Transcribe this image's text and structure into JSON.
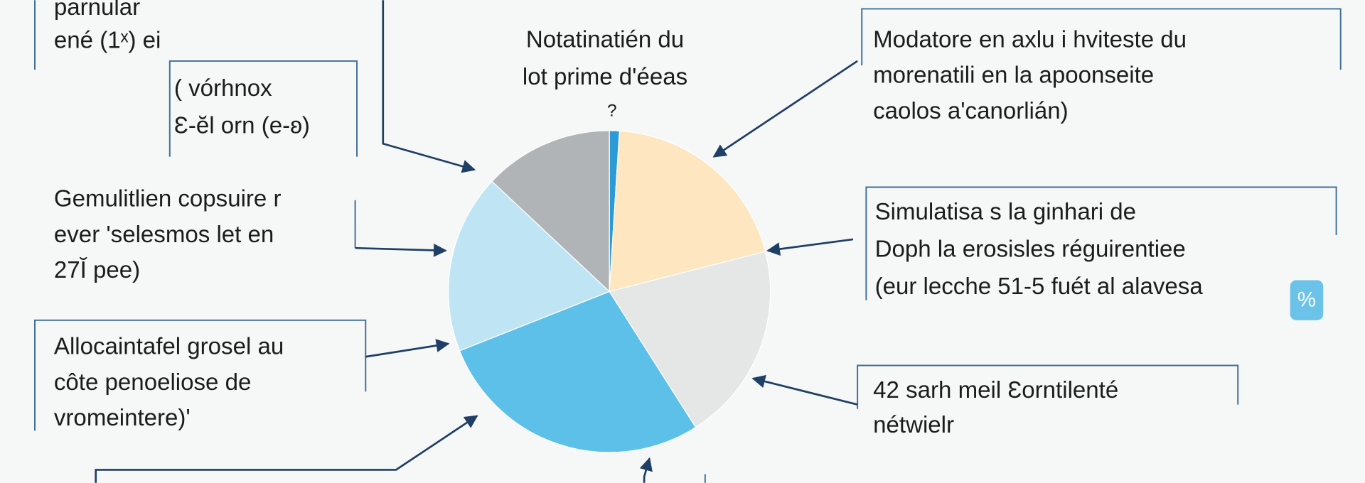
{
  "chart_data": {
    "type": "pie",
    "title": [
      "Notatinatién du",
      "lot prime d'éeas"
    ],
    "slice_label": "?",
    "values": [
      1,
      20,
      20,
      28,
      18,
      13
    ],
    "colors": [
      "#2b9ad6",
      "#fde6c0",
      "#e5e6e6",
      "#5cc0e8",
      "#bfe5f5",
      "#b1b4b6"
    ],
    "annotations": [
      {
        "lines": [
          "parnular",
          "ené (1ˣ) ei"
        ]
      },
      {
        "lines": [
          "( vórhnox",
          "Ɛ-ĕl orn (e-ʚ)"
        ]
      },
      {
        "lines": [
          "Modatore en axlu i hviteste du",
          "morenatili en la apoonseite",
          "caolos a'canorlián)"
        ]
      },
      {
        "lines": [
          "Gemulitlien copsuire r",
          "ever 'selesmos let en",
          "27Ĭ pee)"
        ]
      },
      {
        "lines": [
          "Simulatisa s la ginhari de",
          "Doph la erosisles réguirentiee",
          "(eur lecche 51-5 fuét al alavesa"
        ]
      },
      {
        "lines": [
          "Allocaintafel grosel au",
          "côte penoeliose de",
          "vromeintere)'"
        ]
      },
      {
        "lines": [
          "42 sarh meil Ɛorntilenté",
          "nétwielr"
        ]
      }
    ],
    "badge": "%"
  }
}
